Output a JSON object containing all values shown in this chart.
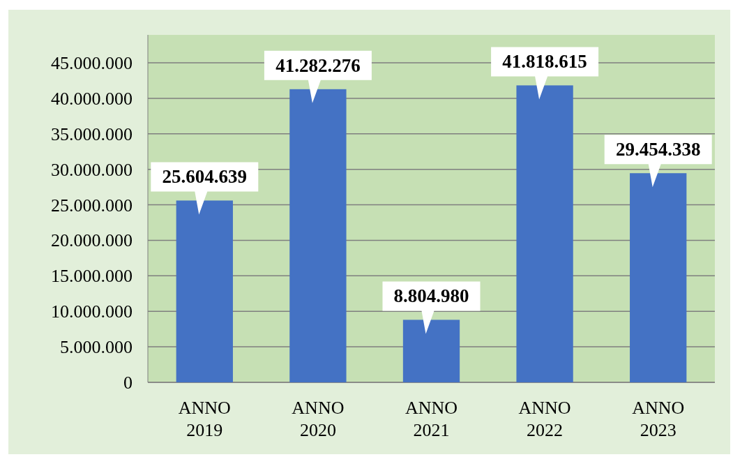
{
  "chart_data": {
    "type": "bar",
    "categories": [
      "ANNO 2019",
      "ANNO 2020",
      "ANNO 2021",
      "ANNO 2022",
      "ANNO 2023"
    ],
    "values": [
      25604639,
      41282276,
      8804980,
      41818615,
      29454338
    ],
    "color": "#4472c4",
    "value_labels": [
      "25.604.639",
      "41.282.276",
      "8.804.980",
      "41.818.615",
      "29.454.338"
    ],
    "ylim": [
      0,
      45000000
    ],
    "yticks": [
      {
        "value": 0,
        "label": "0"
      },
      {
        "value": 5000000,
        "label": "5.000.000"
      },
      {
        "value": 10000000,
        "label": "10.000.000"
      },
      {
        "value": 15000000,
        "label": "15.000.000"
      },
      {
        "value": 20000000,
        "label": "20.000.000"
      },
      {
        "value": 25000000,
        "label": "25.000.000"
      },
      {
        "value": 30000000,
        "label": "30.000.000"
      },
      {
        "value": 35000000,
        "label": "35.000.000"
      },
      {
        "value": 40000000,
        "label": "40.000.000"
      },
      {
        "value": 45000000,
        "label": "45.000.000"
      }
    ],
    "grid": "y"
  }
}
